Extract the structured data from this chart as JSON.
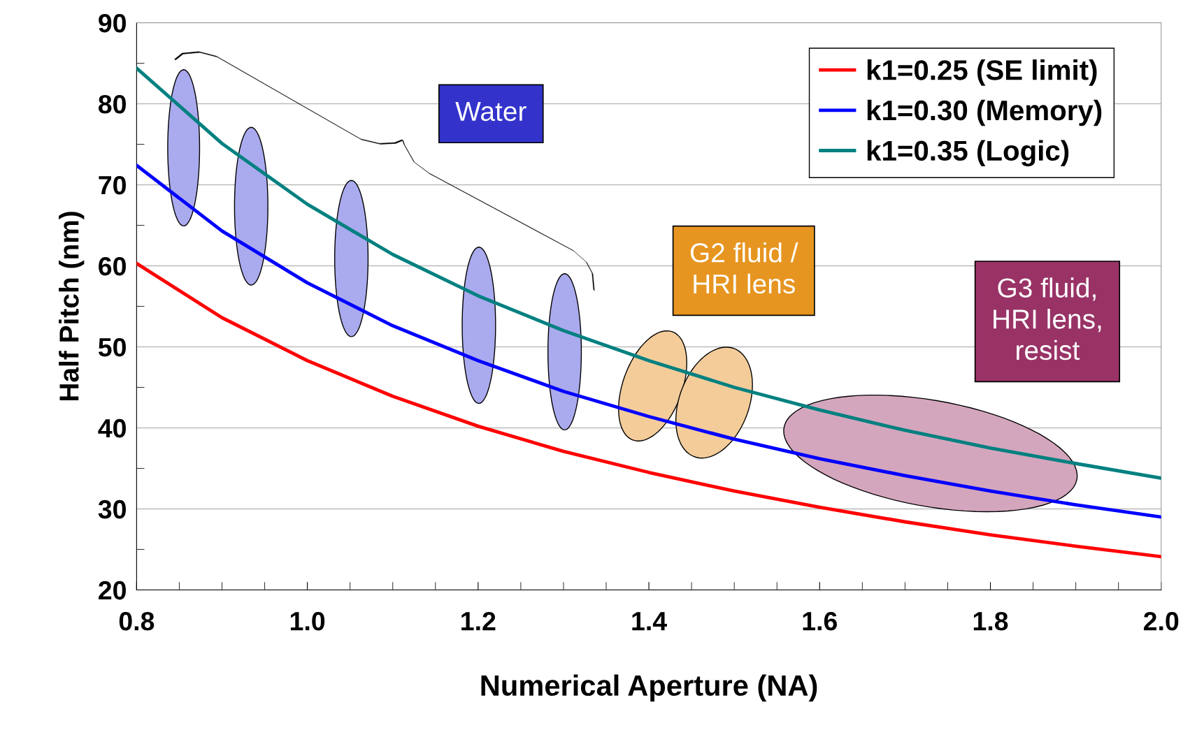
{
  "chart_data": {
    "type": "line",
    "xlabel": "Numerical Aperture (NA)",
    "ylabel": "Half Pitch (nm)",
    "x": [
      0.8,
      0.9,
      1.0,
      1.1,
      1.2,
      1.3,
      1.4,
      1.5,
      1.6,
      1.7,
      1.8,
      1.9,
      2.0
    ],
    "series": [
      {
        "name": "k1=0.25 (SE limit)",
        "color": "#ff0000",
        "values": [
          60.3,
          53.6,
          48.3,
          43.9,
          40.2,
          37.1,
          34.5,
          32.2,
          30.2,
          28.4,
          26.8,
          25.4,
          24.1
        ]
      },
      {
        "name": "k1=0.30 (Memory)",
        "color": "#0000ff",
        "values": [
          72.4,
          64.3,
          57.9,
          52.6,
          48.3,
          44.5,
          41.4,
          38.6,
          36.2,
          34.1,
          32.2,
          30.5,
          29.0
        ]
      },
      {
        "name": "k1=0.35 (Logic)",
        "color": "#008080",
        "values": [
          84.4,
          75.1,
          67.6,
          61.4,
          56.3,
          52.0,
          48.3,
          45.0,
          42.2,
          39.7,
          37.5,
          35.6,
          33.8
        ]
      }
    ],
    "xlim": [
      0.8,
      2.0
    ],
    "xticks": [
      0.8,
      {
        "value": 1.0,
        "label": "1.0"
      },
      1.2,
      1.4,
      1.6,
      1.8,
      {
        "value": 2.0,
        "label": "2.0"
      }
    ],
    "ylim": [
      20,
      90
    ],
    "yticks": [
      20,
      30,
      40,
      50,
      60,
      70,
      80,
      90
    ],
    "grid": "y",
    "legend": "top right",
    "marker": "none",
    "line_style": "solid",
    "annotations": [
      "Water",
      "G2 fluid /\nHRI lens",
      "G3 fluid,\nHRI lens,\nresist"
    ]
  }
}
